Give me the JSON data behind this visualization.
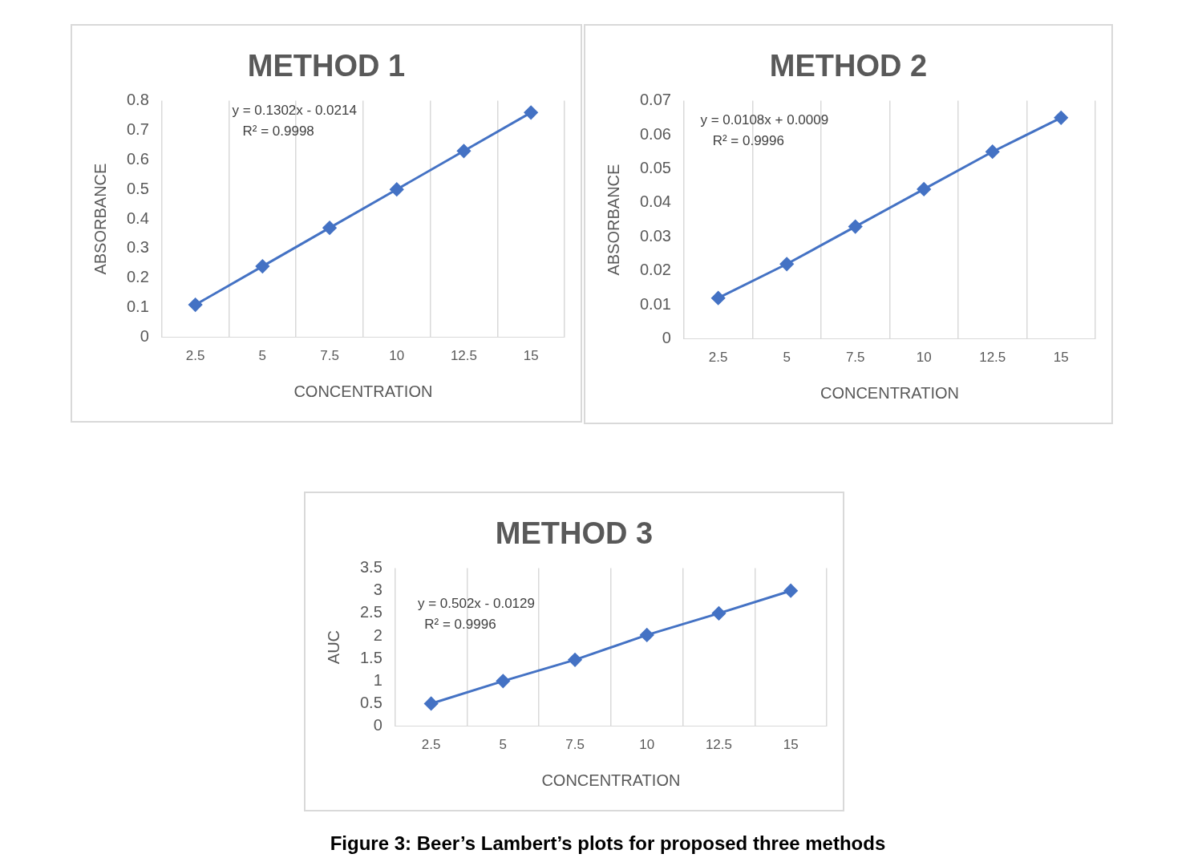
{
  "chart_data": [
    {
      "type": "line",
      "title": "METHOD 1",
      "xlabel": "CONCENTRATION",
      "ylabel": "ABSORBANCE",
      "categories": [
        "2.5",
        "5",
        "7.5",
        "10",
        "12.5",
        "15"
      ],
      "values": [
        0.11,
        0.24,
        0.37,
        0.5,
        0.63,
        0.76
      ],
      "color": "#4472c4",
      "marker": "diamond",
      "ylim": [
        0,
        0.8
      ],
      "yticks": [
        0,
        0.1,
        0.2,
        0.3,
        0.4,
        0.5,
        0.6,
        0.7,
        0.8
      ],
      "grid": "x",
      "annotations": [
        "y = 0.1302x - 0.0214",
        "R² = 0.9998"
      ]
    },
    {
      "type": "line",
      "title": "METHOD 2",
      "xlabel": "CONCENTRATION",
      "ylabel": "ABSORBANCE",
      "categories": [
        "2.5",
        "5",
        "7.5",
        "10",
        "12.5",
        "15"
      ],
      "values": [
        0.012,
        0.022,
        0.033,
        0.044,
        0.055,
        0.065
      ],
      "color": "#4472c4",
      "marker": "diamond",
      "ylim": [
        0,
        0.07
      ],
      "yticks": [
        0,
        0.01,
        0.02,
        0.03,
        0.04,
        0.05,
        0.06,
        0.07
      ],
      "grid": "x",
      "annotations": [
        "y = 0.0108x + 0.0009",
        "R² = 0.9996"
      ]
    },
    {
      "type": "line",
      "title": "METHOD 3",
      "xlabel": "CONCENTRATION",
      "ylabel": "AUC",
      "categories": [
        "2.5",
        "5",
        "7.5",
        "10",
        "12.5",
        "15"
      ],
      "values": [
        0.5,
        1.0,
        1.47,
        2.02,
        2.5,
        3.0
      ],
      "color": "#4472c4",
      "marker": "diamond",
      "ylim": [
        0,
        3.5
      ],
      "yticks": [
        0,
        0.5,
        1,
        1.5,
        2,
        2.5,
        3,
        3.5
      ],
      "grid": "x",
      "annotations": [
        "y = 0.502x - 0.0129",
        "R² = 0.9996",
        "Figure 3: Beer’s Lambert’s plots for proposed three methods"
      ]
    }
  ]
}
